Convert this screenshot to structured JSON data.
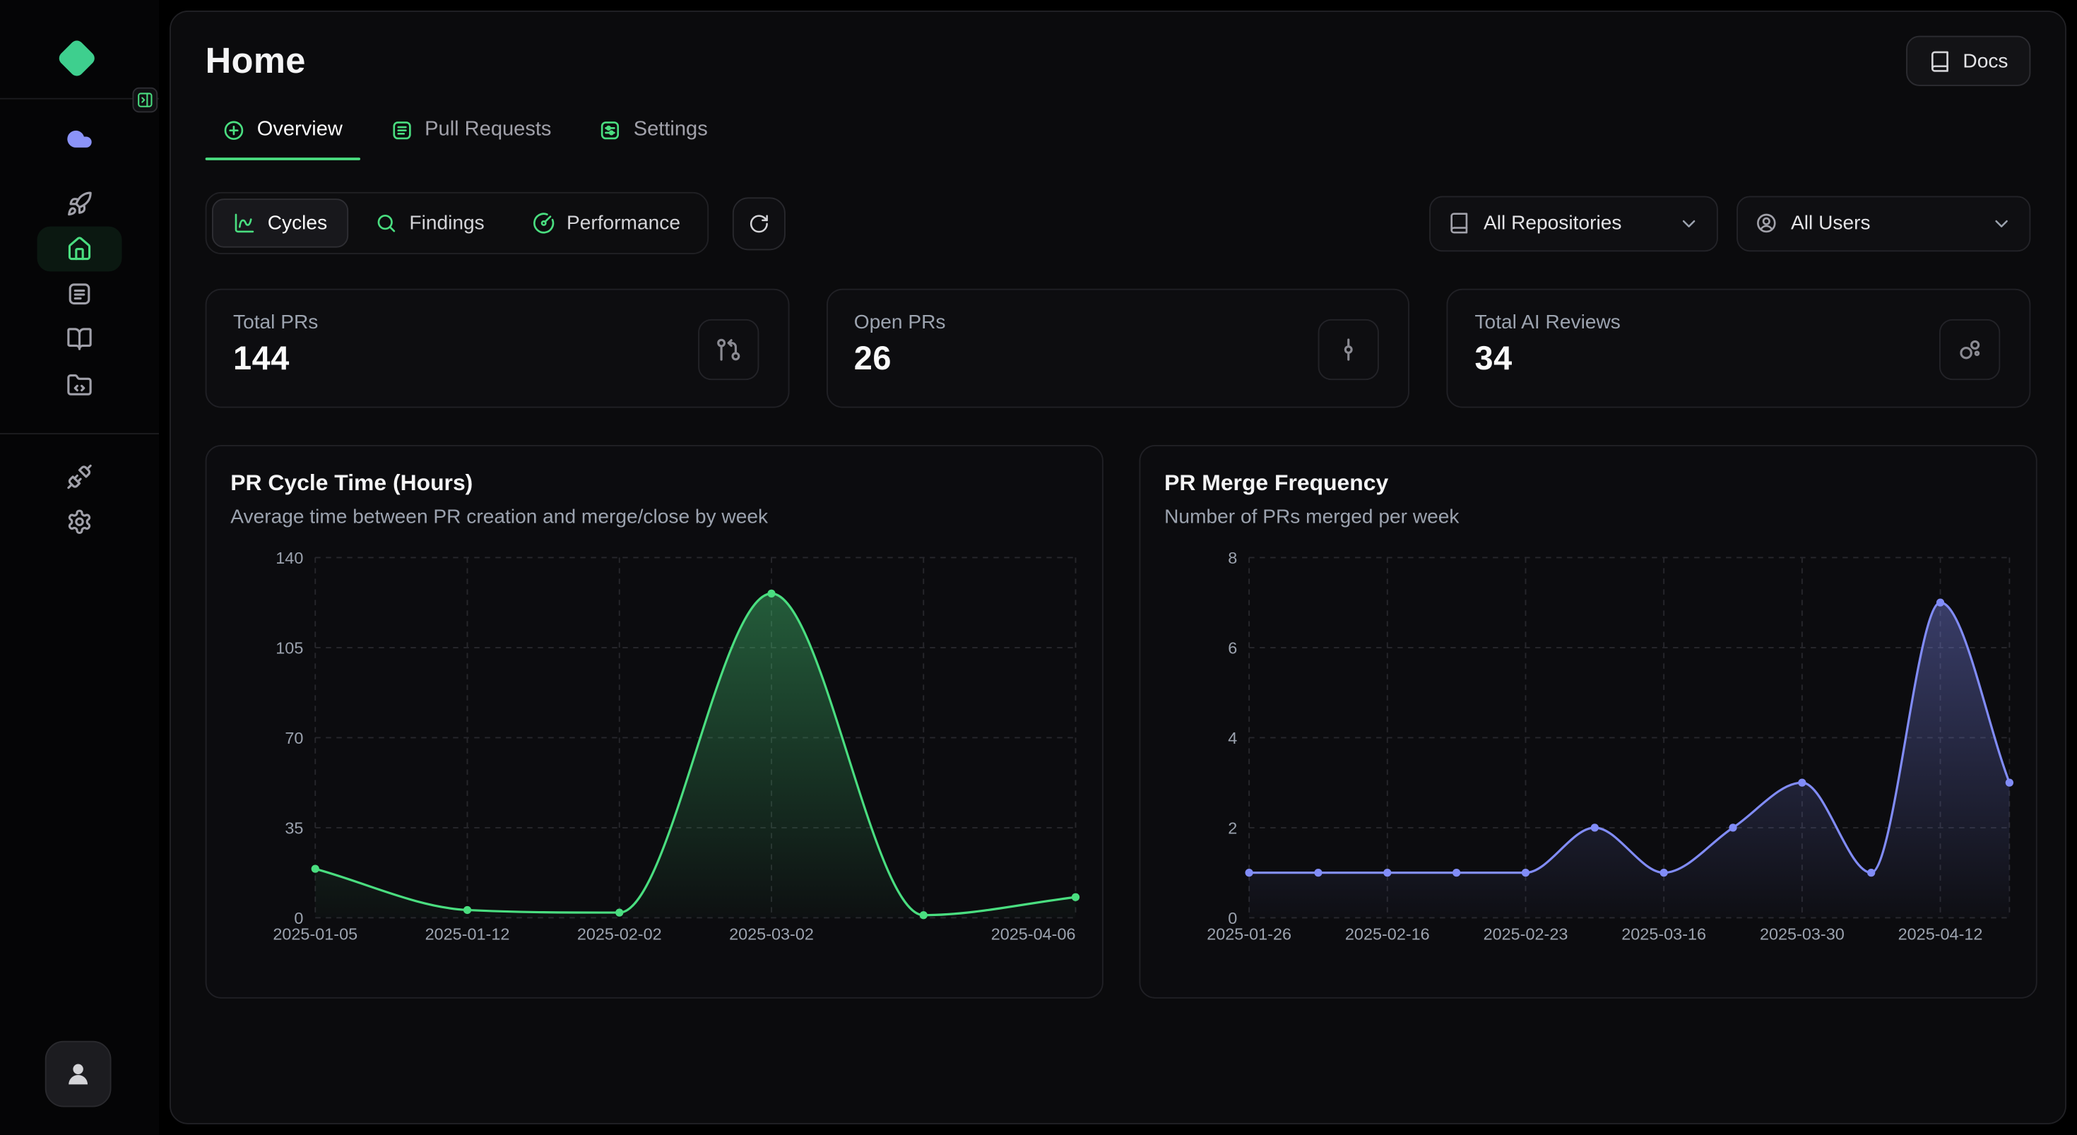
{
  "colors": {
    "accent": "#4ade80",
    "brand": "#3ecf8e",
    "indigo": "#818cf8",
    "text": "#fafafa",
    "muted": "#9ca3af"
  },
  "sidebar": {
    "icons": [
      "cloud",
      "rocket",
      "home",
      "logs",
      "book-open",
      "folder-code",
      "unplug",
      "settings"
    ],
    "active_item": "home",
    "avatar_icon": "user"
  },
  "header": {
    "title": "Home",
    "docs_label": "Docs"
  },
  "tabs": [
    {
      "label": "Overview",
      "icon": "circle-plus",
      "active": true
    },
    {
      "label": "Pull Requests",
      "icon": "list-box",
      "active": false
    },
    {
      "label": "Settings",
      "icon": "settings-box",
      "active": false
    }
  ],
  "controls": {
    "segments": [
      {
        "label": "Cycles",
        "icon": "chart-spline",
        "active": true
      },
      {
        "label": "Findings",
        "icon": "search",
        "active": false
      },
      {
        "label": "Performance",
        "icon": "gauge",
        "active": false
      }
    ],
    "refresh_icon": "rotate-cw",
    "repositories": {
      "label": "All Repositories",
      "icon": "book"
    },
    "users": {
      "label": "All Users",
      "icon": "circle-user"
    }
  },
  "stats": [
    {
      "label": "Total PRs",
      "value": "144",
      "icon": "git-pull-request"
    },
    {
      "label": "Open PRs",
      "value": "26",
      "icon": "git-commit-vertical"
    },
    {
      "label": "Total AI Reviews",
      "value": "34",
      "icon": "bubbles"
    }
  ],
  "chart_data": [
    {
      "type": "area",
      "title": "PR Cycle Time (Hours)",
      "subtitle": "Average time between PR creation and merge/close by week",
      "color": "#4ade80",
      "ylim": [
        0,
        140
      ],
      "y_ticks": [
        0,
        35,
        70,
        105,
        140
      ],
      "values": [
        19,
        3,
        2,
        126,
        1,
        8
      ],
      "x_ticks": [
        {
          "i": 0,
          "label": "2025-01-05"
        },
        {
          "i": 1,
          "label": "2025-01-12"
        },
        {
          "i": 2,
          "label": "2025-02-02"
        },
        {
          "i": 3,
          "label": "2025-03-02"
        },
        {
          "i": 5,
          "label": "2025-04-06"
        }
      ],
      "grid": true,
      "legend": false
    },
    {
      "type": "area",
      "title": "PR Merge Frequency",
      "subtitle": "Number of PRs merged per week",
      "color": "#818cf8",
      "ylim": [
        0,
        8
      ],
      "y_ticks": [
        0,
        2,
        4,
        6,
        8
      ],
      "values": [
        1,
        1,
        1,
        1,
        1,
        2,
        1,
        2,
        3,
        1,
        7,
        3
      ],
      "x_ticks": [
        {
          "i": 0,
          "label": "2025-01-26"
        },
        {
          "i": 2,
          "label": "2025-02-16"
        },
        {
          "i": 4,
          "label": "2025-02-23"
        },
        {
          "i": 6,
          "label": "2025-03-16"
        },
        {
          "i": 8,
          "label": "2025-03-30"
        },
        {
          "i": 10,
          "label": "2025-04-12"
        }
      ],
      "grid": true,
      "legend": false
    }
  ]
}
